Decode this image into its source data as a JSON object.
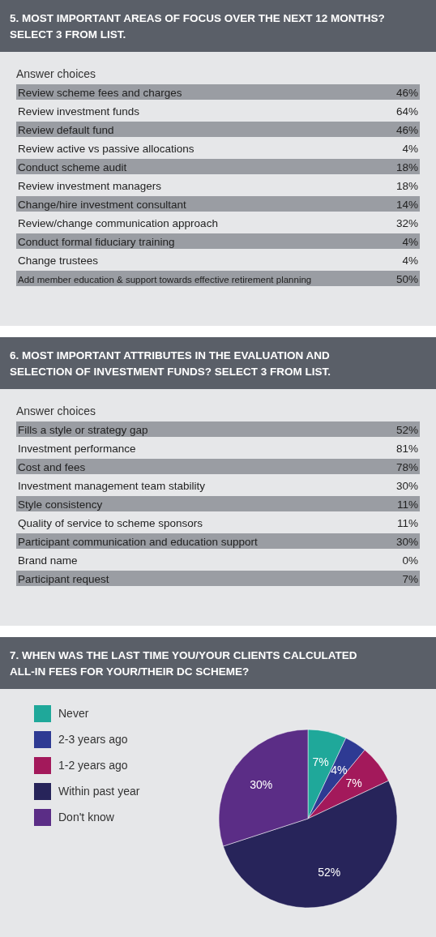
{
  "chart_data": [
    {
      "type": "other",
      "title": "5. MOST IMPORTANT AREAS OF FOCUS OVER THE NEXT 12 MONTHS? SELECT 3 FROM LIST.",
      "subtitle": "Answer choices",
      "categories": [
        "Review scheme fees and charges",
        "Review investment funds",
        "Review default fund",
        "Review active vs passive allocations",
        "Conduct scheme audit",
        "Review investment managers",
        "Change/hire investment consultant",
        "Review/change communication approach",
        "Conduct formal fiduciary training",
        "Change trustees",
        "Add member education & support towards effective retirement planning"
      ],
      "value_labels": [
        "46%",
        "64%",
        "46%",
        "4%",
        "18%",
        "18%",
        "14%",
        "32%",
        "4%",
        "4%",
        "50%"
      ]
    },
    {
      "type": "other",
      "title": "6. MOST IMPORTANT ATTRIBUTES IN THE EVALUATION AND SELECTION OF INVESTMENT FUNDS? SELECT 3 FROM LIST.",
      "subtitle": "Answer choices",
      "categories": [
        "Fills a style or strategy gap",
        "Investment performance",
        "Cost and fees",
        "Investment management team stability",
        "Style consistency",
        "Quality of service to scheme sponsors",
        "Participant communication and education support",
        "Brand name",
        "Participant request"
      ],
      "value_labels": [
        "52%",
        "81%",
        "78%",
        "30%",
        "11%",
        "11%",
        "30%",
        "0%",
        "7%"
      ]
    },
    {
      "type": "pie",
      "title": "7. WHEN WAS THE LAST TIME YOU/YOUR CLIENTS CALCULATED ALL-IN FEES FOR YOUR/THEIR DC SCHEME?",
      "categories": [
        "Never",
        "2-3 years ago",
        "1-2 years ago",
        "Within past year",
        "Don't know"
      ],
      "values": [
        7,
        4,
        7,
        52,
        30
      ],
      "colors": [
        "#1fa89a",
        "#2e3a93",
        "#a3195b",
        "#27245a",
        "#5b2d86"
      ],
      "value_labels": [
        "7%",
        "4%",
        "7%",
        "52%",
        "30%"
      ],
      "legend": "left"
    }
  ]
}
